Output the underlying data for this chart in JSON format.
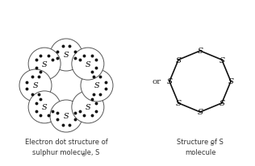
{
  "background_color": "#ffffff",
  "fig_width": 3.16,
  "fig_height": 2.07,
  "dpi": 100,
  "left_label_line1": "Electron dot structure of",
  "left_label_line2": "sulphur molecule, S",
  "left_label_sub": "8",
  "right_label_line1": "Structure of S",
  "right_label_sub": "8",
  "right_label_line2": "molecule",
  "or_text": "or",
  "num_sulfur": 8,
  "dot_electron_color": "#111111",
  "edge_color": "#555555",
  "bond_color": "#111111",
  "text_color": "#333333"
}
